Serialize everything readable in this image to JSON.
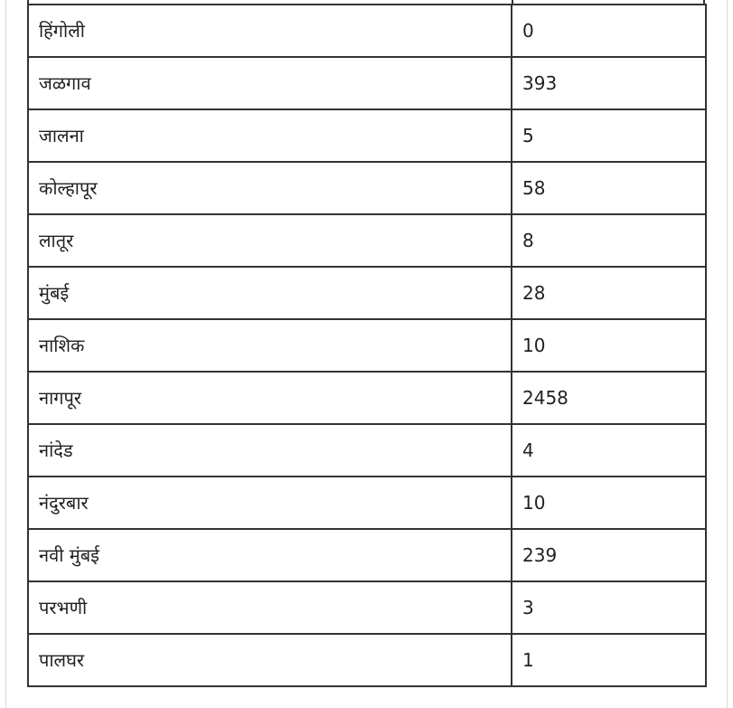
{
  "table": {
    "rows": [
      {
        "district": "हिंगोली",
        "count": "0"
      },
      {
        "district": "जळगाव",
        "count": "393"
      },
      {
        "district": "जालना",
        "count": "5"
      },
      {
        "district": "कोल्हापूर",
        "count": "58"
      },
      {
        "district": "लातूर",
        "count": "8"
      },
      {
        "district": "मुंबई",
        "count": "28"
      },
      {
        "district": "नाशिक",
        "count": "10"
      },
      {
        "district": "नागपूर",
        "count": "2458"
      },
      {
        "district": "नांदेड",
        "count": "4"
      },
      {
        "district": "नंदुरबार",
        "count": "10"
      },
      {
        "district": "नवी मुंबई",
        "count": "239"
      },
      {
        "district": "परभणी",
        "count": "3"
      },
      {
        "district": "पालघर",
        "count": "1"
      }
    ]
  }
}
